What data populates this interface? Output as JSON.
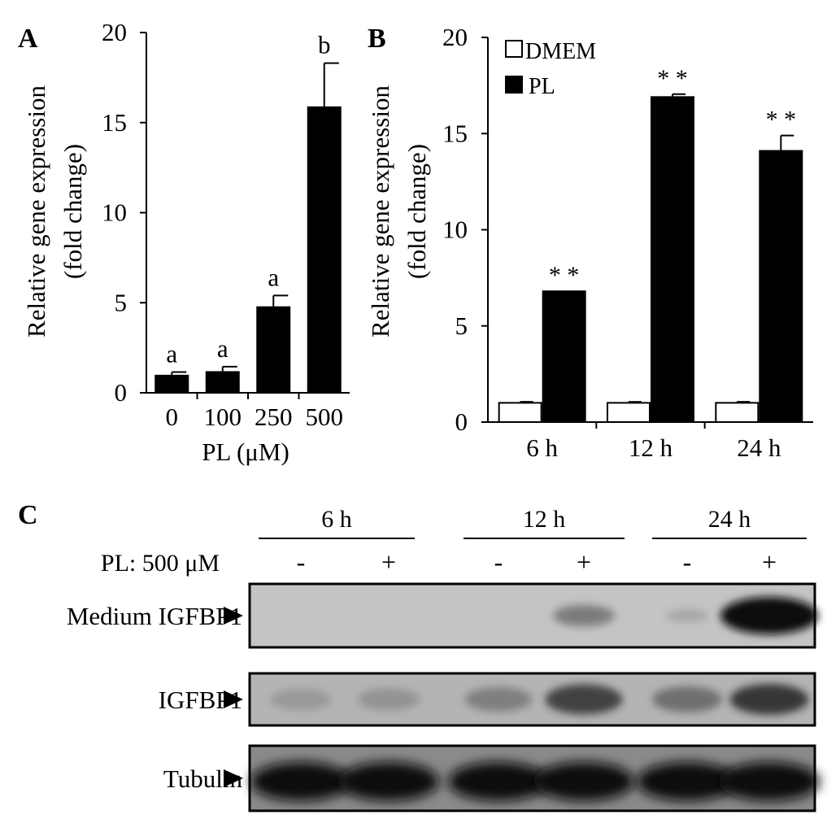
{
  "chart_data": [
    {
      "panel_label": "A",
      "type": "bar",
      "categories": [
        "0",
        "100",
        "250",
        "500"
      ],
      "values": [
        1.0,
        1.2,
        4.8,
        15.9
      ],
      "errors": [
        0.15,
        0.25,
        0.6,
        2.4
      ],
      "annotations": [
        "a",
        "a",
        "a",
        "b"
      ],
      "xlabel": "PL (μM)",
      "ylabel": [
        "Relative gene expression",
        "(fold change)"
      ],
      "ylim": [
        0,
        20
      ],
      "yticks": [
        0,
        5,
        10,
        15,
        20
      ],
      "bar_color": "#000000"
    },
    {
      "panel_label": "B",
      "type": "bar",
      "categories": [
        "6 h",
        "12 h",
        "24 h"
      ],
      "series": [
        {
          "name": "DMEM",
          "values": [
            1.0,
            1.0,
            1.0
          ],
          "errors": [
            0.05,
            0.05,
            0.05
          ],
          "color": "#ffffff"
        },
        {
          "name": "PL",
          "values": [
            6.8,
            16.9,
            14.1
          ],
          "errors": [
            0.0,
            0.15,
            0.8
          ],
          "color": "#000000"
        }
      ],
      "annotations": [
        "* *",
        "* *",
        "* *"
      ],
      "ylabel": [
        "Relative gene expression",
        "(fold change)"
      ],
      "ylim": [
        0,
        20
      ],
      "yticks": [
        0,
        5,
        10,
        15,
        20
      ],
      "legend": "top-left"
    }
  ],
  "blot": {
    "panel_label": "C",
    "time_groups": [
      "6 h",
      "12 h",
      "24 h"
    ],
    "treatment_label": "PL: 500 μM",
    "lane_signs": [
      "-",
      "+",
      "-",
      "+",
      "-",
      "+"
    ],
    "rows": [
      {
        "label": "Medium IGFBP1",
        "intensities": [
          0.0,
          0.0,
          0.0,
          0.45,
          0.15,
          1.0
        ]
      },
      {
        "label": "IGFBP1",
        "intensities": [
          0.2,
          0.25,
          0.4,
          0.75,
          0.5,
          0.8
        ]
      },
      {
        "label": "Tubulin",
        "intensities": [
          1.0,
          1.0,
          1.0,
          1.0,
          1.0,
          1.0
        ]
      }
    ]
  }
}
